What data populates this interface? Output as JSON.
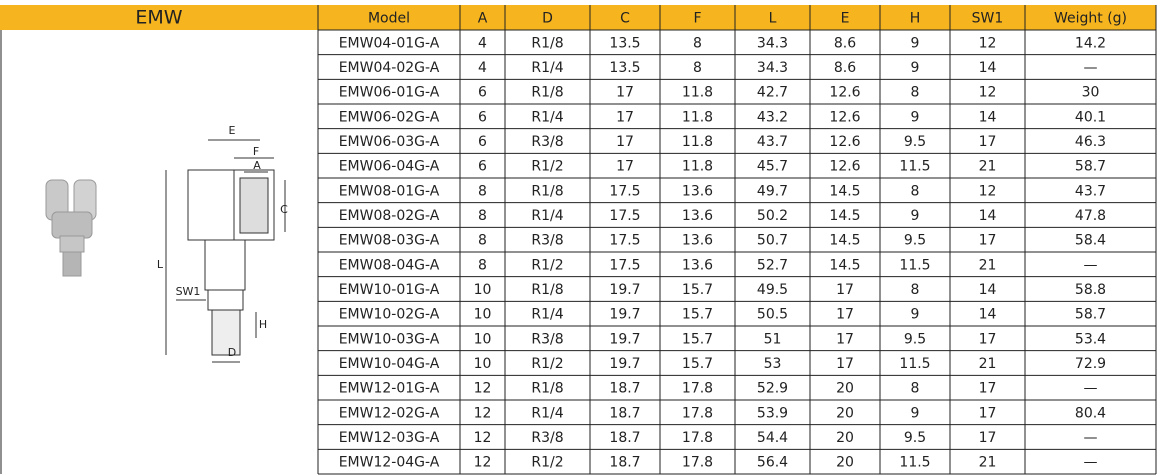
{
  "header": {
    "title": "EMW"
  },
  "table": {
    "columns": [
      "Model",
      "A",
      "D",
      "C",
      "F",
      "L",
      "E",
      "H",
      "SW1",
      "Weight (g)"
    ],
    "rows": [
      [
        "EMW04-01G-A",
        "4",
        "R1/8",
        "13.5",
        "8",
        "34.3",
        "8.6",
        "9",
        "12",
        "14.2"
      ],
      [
        "EMW04-02G-A",
        "4",
        "R1/4",
        "13.5",
        "8",
        "34.3",
        "8.6",
        "9",
        "14",
        "—"
      ],
      [
        "EMW06-01G-A",
        "6",
        "R1/8",
        "17",
        "11.8",
        "42.7",
        "12.6",
        "8",
        "12",
        "30"
      ],
      [
        "EMW06-02G-A",
        "6",
        "R1/4",
        "17",
        "11.8",
        "43.2",
        "12.6",
        "9",
        "14",
        "40.1"
      ],
      [
        "EMW06-03G-A",
        "6",
        "R3/8",
        "17",
        "11.8",
        "43.7",
        "12.6",
        "9.5",
        "17",
        "46.3"
      ],
      [
        "EMW06-04G-A",
        "6",
        "R1/2",
        "17",
        "11.8",
        "45.7",
        "12.6",
        "11.5",
        "21",
        "58.7"
      ],
      [
        "EMW08-01G-A",
        "8",
        "R1/8",
        "17.5",
        "13.6",
        "49.7",
        "14.5",
        "8",
        "12",
        "43.7"
      ],
      [
        "EMW08-02G-A",
        "8",
        "R1/4",
        "17.5",
        "13.6",
        "50.2",
        "14.5",
        "9",
        "14",
        "47.8"
      ],
      [
        "EMW08-03G-A",
        "8",
        "R3/8",
        "17.5",
        "13.6",
        "50.7",
        "14.5",
        "9.5",
        "17",
        "58.4"
      ],
      [
        "EMW08-04G-A",
        "8",
        "R1/2",
        "17.5",
        "13.6",
        "52.7",
        "14.5",
        "11.5",
        "21",
        "—"
      ],
      [
        "EMW10-01G-A",
        "10",
        "R1/8",
        "19.7",
        "15.7",
        "49.5",
        "17",
        "8",
        "14",
        "58.8"
      ],
      [
        "EMW10-02G-A",
        "10",
        "R1/4",
        "19.7",
        "15.7",
        "50.5",
        "17",
        "9",
        "14",
        "58.7"
      ],
      [
        "EMW10-03G-A",
        "10",
        "R3/8",
        "19.7",
        "15.7",
        "51",
        "17",
        "9.5",
        "17",
        "53.4"
      ],
      [
        "EMW10-04G-A",
        "10",
        "R1/2",
        "19.7",
        "15.7",
        "53",
        "17",
        "11.5",
        "21",
        "72.9"
      ],
      [
        "EMW12-01G-A",
        "12",
        "R1/8",
        "18.7",
        "17.8",
        "52.9",
        "20",
        "8",
        "17",
        "—"
      ],
      [
        "EMW12-02G-A",
        "12",
        "R1/4",
        "18.7",
        "17.8",
        "53.9",
        "20",
        "9",
        "17",
        "80.4"
      ],
      [
        "EMW12-03G-A",
        "12",
        "R3/8",
        "18.7",
        "17.8",
        "54.4",
        "20",
        "9.5",
        "17",
        "—"
      ],
      [
        "EMW12-04G-A",
        "12",
        "R1/2",
        "18.7",
        "17.8",
        "56.4",
        "20",
        "11.5",
        "21",
        "—"
      ]
    ]
  },
  "diagram": {
    "labels": [
      "E",
      "F",
      "A",
      "C",
      "L",
      "SW1",
      "H",
      "D"
    ]
  }
}
